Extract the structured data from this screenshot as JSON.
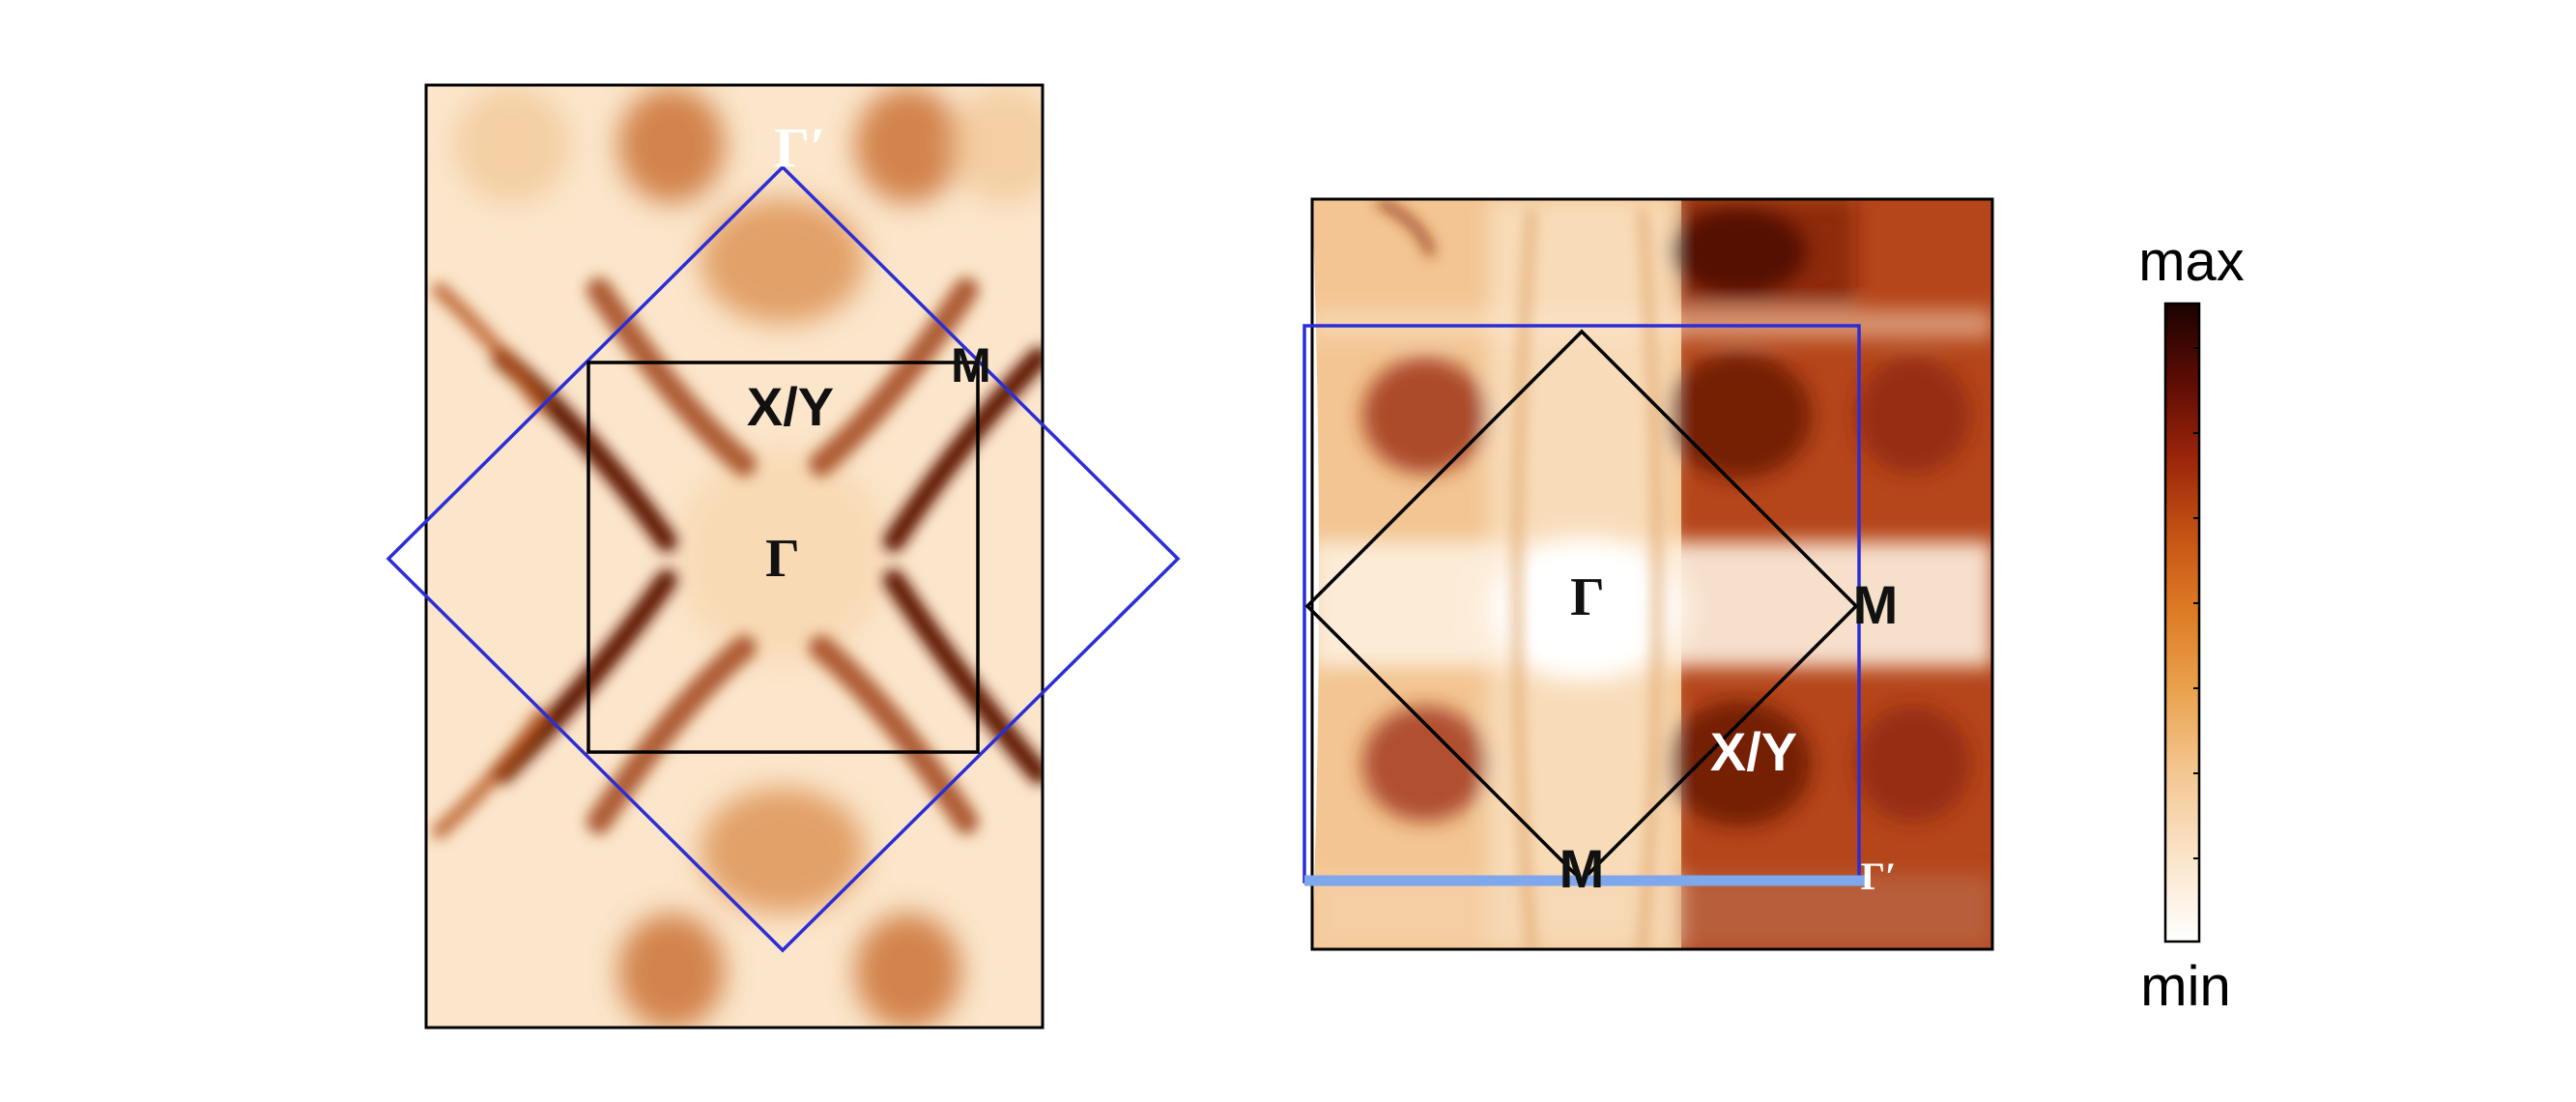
{
  "panel_left": {
    "labels": {
      "gamma": "Γ",
      "gamma_prime": "Γ′",
      "xy": "X/Y",
      "m": "M"
    }
  },
  "panel_right": {
    "labels": {
      "gamma": "Γ",
      "m_right": "M",
      "m_bottom": "M",
      "xy": "X/Y",
      "gamma_prime": "Γ′"
    }
  },
  "colorbar": {
    "max_label": "max",
    "min_label": "min",
    "colormap": [
      "#ffffff",
      "#fbe7cf",
      "#f3c38a",
      "#e9a04a",
      "#de7a24",
      "#c35214",
      "#9a240a",
      "#5c0c04",
      "#1b0201"
    ]
  },
  "colors": {
    "blue_zone": "#2b2ed6",
    "black_zone": "#000000",
    "cut_line": "#7ea7ec",
    "map_light": "#fbe6cb",
    "map_mid": "#e8a464",
    "map_dark": "#6b1406"
  }
}
